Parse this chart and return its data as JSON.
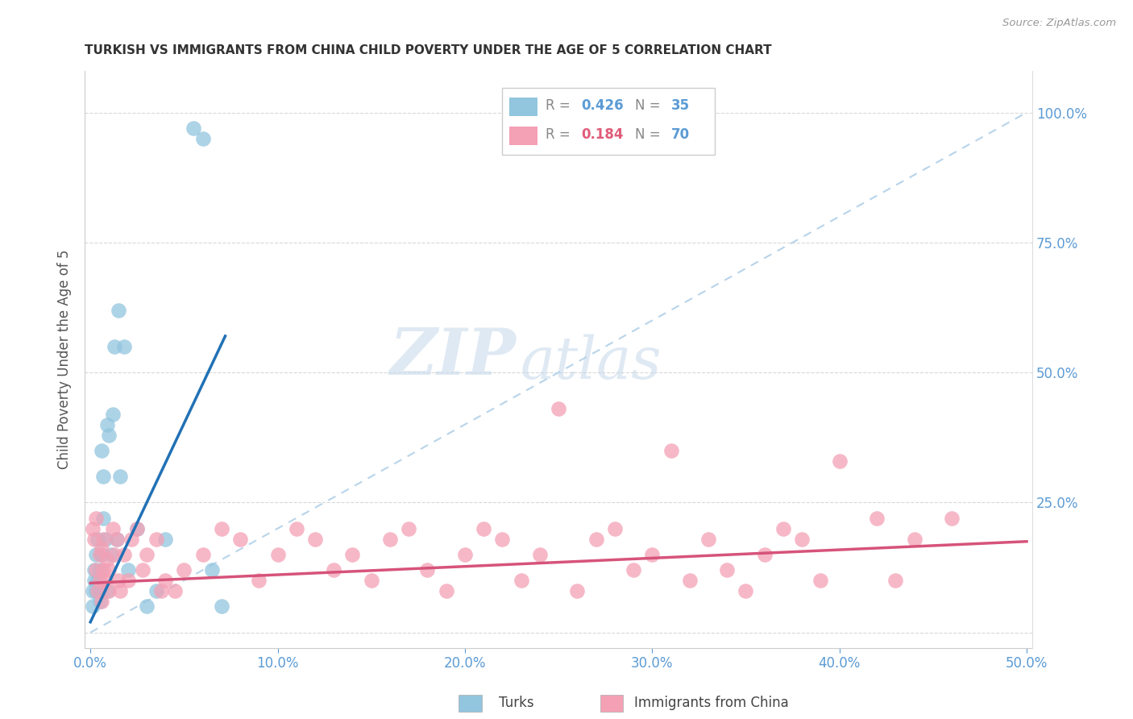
{
  "title": "TURKISH VS IMMIGRANTS FROM CHINA CHILD POVERTY UNDER THE AGE OF 5 CORRELATION CHART",
  "source": "Source: ZipAtlas.com",
  "ylabel": "Child Poverty Under the Age of 5",
  "color_blue": "#92c5de",
  "color_pink": "#f4a0b5",
  "color_blue_line": "#2171b5",
  "color_pink_line": "#d6537a",
  "color_diag": "#b8d4ea",
  "watermark_zip": "ZIP",
  "watermark_atlas": "atlas",
  "legend_blue_r": "0.426",
  "legend_blue_n": "35",
  "legend_pink_r": "0.184",
  "legend_pink_n": "70",
  "turks_x": [
    0.001,
    0.001,
    0.002,
    0.002,
    0.003,
    0.003,
    0.004,
    0.004,
    0.005,
    0.005,
    0.005,
    0.006,
    0.006,
    0.007,
    0.007,
    0.008,
    0.009,
    0.009,
    0.01,
    0.011,
    0.012,
    0.013,
    0.014,
    0.015,
    0.016,
    0.018,
    0.02,
    0.025,
    0.03,
    0.035,
    0.04,
    0.055,
    0.06,
    0.065,
    0.07
  ],
  "turks_y": [
    0.08,
    0.05,
    0.1,
    0.12,
    0.08,
    0.15,
    0.1,
    0.18,
    0.06,
    0.12,
    0.08,
    0.15,
    0.35,
    0.22,
    0.3,
    0.18,
    0.4,
    0.08,
    0.38,
    0.15,
    0.42,
    0.55,
    0.18,
    0.62,
    0.3,
    0.55,
    0.12,
    0.2,
    0.05,
    0.08,
    0.18,
    0.97,
    0.95,
    0.12,
    0.05
  ],
  "china_x": [
    0.001,
    0.002,
    0.003,
    0.003,
    0.004,
    0.005,
    0.005,
    0.006,
    0.006,
    0.007,
    0.007,
    0.008,
    0.009,
    0.01,
    0.01,
    0.012,
    0.013,
    0.014,
    0.015,
    0.016,
    0.018,
    0.02,
    0.022,
    0.025,
    0.028,
    0.03,
    0.035,
    0.038,
    0.04,
    0.045,
    0.05,
    0.06,
    0.07,
    0.08,
    0.09,
    0.1,
    0.11,
    0.12,
    0.13,
    0.14,
    0.15,
    0.16,
    0.17,
    0.18,
    0.19,
    0.2,
    0.21,
    0.22,
    0.23,
    0.24,
    0.25,
    0.26,
    0.27,
    0.28,
    0.29,
    0.3,
    0.31,
    0.32,
    0.33,
    0.34,
    0.35,
    0.36,
    0.37,
    0.38,
    0.39,
    0.4,
    0.42,
    0.43,
    0.44,
    0.46
  ],
  "china_y": [
    0.2,
    0.18,
    0.12,
    0.22,
    0.08,
    0.1,
    0.15,
    0.06,
    0.16,
    0.12,
    0.18,
    0.1,
    0.14,
    0.12,
    0.08,
    0.2,
    0.15,
    0.18,
    0.1,
    0.08,
    0.15,
    0.1,
    0.18,
    0.2,
    0.12,
    0.15,
    0.18,
    0.08,
    0.1,
    0.08,
    0.12,
    0.15,
    0.2,
    0.18,
    0.1,
    0.15,
    0.2,
    0.18,
    0.12,
    0.15,
    0.1,
    0.18,
    0.2,
    0.12,
    0.08,
    0.15,
    0.2,
    0.18,
    0.1,
    0.15,
    0.43,
    0.08,
    0.18,
    0.2,
    0.12,
    0.15,
    0.35,
    0.1,
    0.18,
    0.12,
    0.08,
    0.15,
    0.2,
    0.18,
    0.1,
    0.33,
    0.22,
    0.1,
    0.18,
    0.22
  ],
  "blue_line_x": [
    0.0,
    0.072
  ],
  "blue_line_y": [
    0.02,
    0.57
  ],
  "pink_line_x": [
    0.0,
    0.5
  ],
  "pink_line_y": [
    0.095,
    0.175
  ],
  "diag_line_x": [
    0.0,
    0.5
  ],
  "diag_line_y": [
    0.0,
    1.0
  ],
  "xlim": [
    -0.003,
    0.503
  ],
  "ylim": [
    -0.03,
    1.08
  ],
  "xtick_positions": [
    0.0,
    0.1,
    0.2,
    0.3,
    0.4,
    0.5
  ],
  "xtick_labels": [
    "0.0%",
    "10.0%",
    "20.0%",
    "30.0%",
    "40.0%",
    "50.0%"
  ],
  "ytick_positions": [
    0.0,
    0.25,
    0.5,
    0.75,
    1.0
  ],
  "ytick_labels_right": [
    "",
    "25.0%",
    "50.0%",
    "75.0%",
    "100.0%"
  ]
}
